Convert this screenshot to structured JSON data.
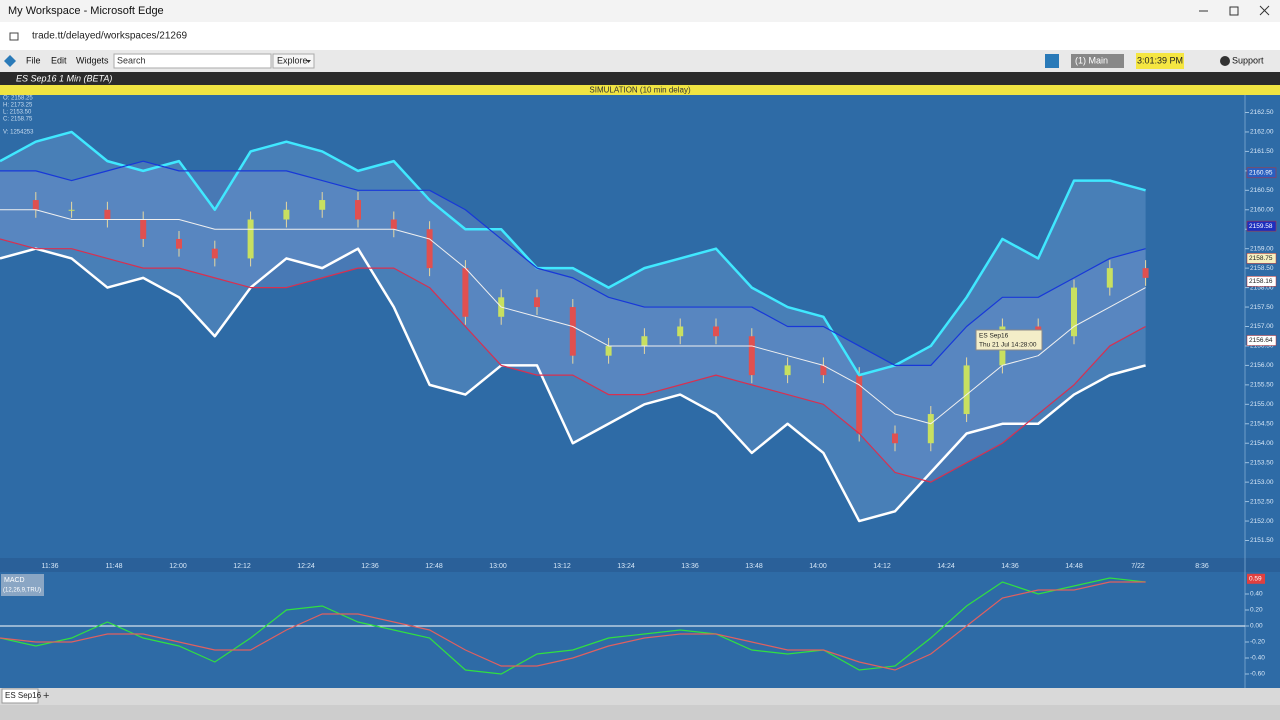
{
  "window": {
    "title": "My Workspace - Microsoft Edge",
    "url": "trade.tt/delayed/workspaces/21269"
  },
  "toolbar": {
    "menu": [
      "File",
      "Edit",
      "Widgets"
    ],
    "search": "Search",
    "explore": "Explore",
    "workspace": "(1) Main",
    "time": "3:01:39 PM",
    "support": "Support"
  },
  "widget": {
    "title": "ES Sep16 1 Min (BETA)",
    "banner": "SIMULATION (10 min delay)",
    "ohlc": [
      "O: 2158.25",
      "H: 2173.25",
      "L: 2153.50",
      "C: 2158.75",
      "V: 1254253"
    ],
    "tooltip": [
      "ES Sep16",
      "Thu 21 Jul 14:28:00"
    ]
  },
  "price_chart": {
    "type": "candlestick",
    "ylim": [
      2151.05,
      2162.95
    ],
    "yticks": [
      {
        "value": 2151.5,
        "label": "2151.50"
      },
      {
        "value": 2152,
        "label": "2152.00"
      },
      {
        "value": 2152.5,
        "label": "2152.50"
      },
      {
        "value": 2153,
        "label": "2153.00"
      },
      {
        "value": 2153.5,
        "label": "2153.50"
      },
      {
        "value": 2154,
        "label": "2154.00"
      },
      {
        "value": 2154.5,
        "label": "2154.50"
      },
      {
        "value": 2155,
        "label": "2155.00"
      },
      {
        "value": 2155.5,
        "label": "2155.50"
      },
      {
        "value": 2156,
        "label": "2156.00"
      },
      {
        "value": 2156.5,
        "label": "2156.50"
      },
      {
        "value": 2157,
        "label": "2157.00"
      },
      {
        "value": 2157.5,
        "label": "2157.50"
      },
      {
        "value": 2158,
        "label": "2158.00"
      },
      {
        "value": 2158.5,
        "label": "2158.50"
      },
      {
        "value": 2159,
        "label": "2159.00"
      },
      {
        "value": 2159.5,
        "label": "2159.50"
      },
      {
        "value": 2160,
        "label": "2160.00"
      },
      {
        "value": 2160.5,
        "label": "2160.50"
      },
      {
        "value": 2161,
        "label": "2161.00"
      },
      {
        "value": 2161.5,
        "label": "2161.50"
      },
      {
        "value": 2162,
        "label": "2162.00"
      },
      {
        "value": 2162.5,
        "label": "2162.50"
      }
    ],
    "xlabels": [
      "11:36",
      "11:48",
      "12:00",
      "12:12",
      "12:24",
      "12:36",
      "12:48",
      "13:00",
      "13:12",
      "13:24",
      "13:36",
      "13:48",
      "14:00",
      "14:12",
      "14:24",
      "14:36",
      "14:48",
      "7/22",
      "8:36"
    ],
    "close": [
      2160.25,
      2160.0,
      2160.0,
      2159.75,
      2159.25,
      2159.0,
      2158.75,
      2159.75,
      2160.0,
      2160.25,
      2159.75,
      2159.5,
      2158.5,
      2157.25,
      2157.75,
      2157.5,
      2156.25,
      2156.5,
      2156.75,
      2157.0,
      2156.75,
      2155.75,
      2156.0,
      2155.75,
      2154.25,
      2154.0,
      2154.75,
      2156.0,
      2157.0,
      2156.75,
      2158.0,
      2158.5,
      2158.25
    ],
    "up_color": "#c8e060",
    "down_color": "#e05050",
    "series": [
      {
        "key": "upper",
        "color": "#40e8ff",
        "width": 2.5,
        "values": [
          2161.25,
          2161.75,
          2162.0,
          2161.25,
          2161.0,
          2161.25,
          2160.0,
          2161.5,
          2161.75,
          2161.5,
          2161.0,
          2161.25,
          2160.25,
          2159.5,
          2159.5,
          2158.5,
          2158.5,
          2158.0,
          2158.5,
          2158.75,
          2159.0,
          2158.0,
          2157.5,
          2157.25,
          2155.75,
          2156.0,
          2156.5,
          2157.75,
          2159.25,
          2158.75,
          2160.75,
          2160.75,
          2160.5
        ]
      },
      {
        "key": "lower",
        "color": "#ffffff",
        "width": 2.5,
        "values": [
          2158.75,
          2159.0,
          2158.75,
          2158.0,
          2158.25,
          2157.75,
          2156.75,
          2158.0,
          2158.75,
          2158.5,
          2159.0,
          2157.5,
          2155.5,
          2155.25,
          2156.0,
          2156.0,
          2154.0,
          2154.5,
          2155.0,
          2155.25,
          2154.75,
          2153.75,
          2154.5,
          2153.75,
          2152.0,
          2152.25,
          2153.25,
          2154.25,
          2154.5,
          2154.5,
          2155.25,
          2155.75,
          2156.0
        ]
      },
      {
        "key": "bb_upper",
        "color": "#1838d8",
        "width": 1.2,
        "values": [
          2161.0,
          2161.0,
          2160.75,
          2161.0,
          2161.25,
          2161.0,
          2161.0,
          2161.0,
          2161.0,
          2160.75,
          2160.5,
          2160.5,
          2160.5,
          2160.0,
          2159.25,
          2158.5,
          2158.25,
          2157.75,
          2157.5,
          2157.5,
          2157.5,
          2157.5,
          2157.0,
          2157.0,
          2156.5,
          2156.0,
          2156.0,
          2157.0,
          2157.75,
          2157.75,
          2158.25,
          2158.75,
          2159.0
        ]
      },
      {
        "key": "bb_lower",
        "color": "#d83050",
        "width": 1.2,
        "values": [
          2159.25,
          2159.0,
          2159.0,
          2158.75,
          2158.5,
          2158.5,
          2158.25,
          2158.0,
          2158.0,
          2158.25,
          2158.5,
          2158.5,
          2158.0,
          2157.0,
          2156.0,
          2155.75,
          2155.75,
          2155.25,
          2155.25,
          2155.5,
          2155.75,
          2155.5,
          2155.25,
          2155.0,
          2154.25,
          2153.25,
          2153.0,
          2153.5,
          2154.0,
          2154.75,
          2155.5,
          2156.5,
          2157.0
        ]
      },
      {
        "key": "mid",
        "color": "#f0f0f0",
        "width": 1,
        "values": [
          2160.0,
          2160.0,
          2159.75,
          2159.75,
          2159.75,
          2159.75,
          2159.5,
          2159.5,
          2159.5,
          2159.5,
          2159.5,
          2159.5,
          2159.25,
          2158.5,
          2157.5,
          2157.25,
          2157.0,
          2156.5,
          2156.5,
          2156.5,
          2156.5,
          2156.5,
          2156.25,
          2156.0,
          2155.5,
          2154.75,
          2154.5,
          2155.25,
          2156.0,
          2156.25,
          2157.0,
          2157.5,
          2158.0
        ]
      }
    ],
    "markers": [
      {
        "value": 2160.95,
        "bg": "#2a5fc0",
        "fg": "#ffffff"
      },
      {
        "value": 2159.58,
        "bg": "#1c2fbf",
        "fg": "#ffffff"
      },
      {
        "value": 2158.75,
        "bg": "#f5f0c0",
        "fg": "#222222"
      },
      {
        "value": 2158.16,
        "bg": "#ffffff",
        "fg": "#222222"
      },
      {
        "value": 2156.64,
        "bg": "#ffffff",
        "fg": "#222222"
      }
    ]
  },
  "macd_chart": {
    "type": "line",
    "title": "MACD",
    "params": "(12,26,9,TRU)",
    "ylim": [
      -0.775,
      0.65
    ],
    "yticks": [
      {
        "value": 0.4,
        "label": "0.40"
      },
      {
        "value": 0.2,
        "label": "0.20"
      },
      {
        "value": 0,
        "label": "0.00"
      },
      {
        "value": -0.2,
        "label": "-0.20"
      },
      {
        "value": -0.4,
        "label": "-0.40"
      },
      {
        "value": -0.6,
        "label": "-0.60"
      }
    ],
    "marker": 0.59,
    "series": [
      {
        "key": "macd",
        "color": "#30e040",
        "values": [
          -0.15,
          -0.25,
          -0.15,
          0.05,
          -0.15,
          -0.25,
          -0.45,
          -0.15,
          0.2,
          0.25,
          0.05,
          -0.05,
          -0.15,
          -0.55,
          -0.6,
          -0.35,
          -0.3,
          -0.15,
          -0.1,
          -0.05,
          -0.1,
          -0.3,
          -0.35,
          -0.3,
          -0.55,
          -0.5,
          -0.15,
          0.25,
          0.55,
          0.4,
          0.5,
          0.6,
          0.55
        ]
      },
      {
        "key": "signal",
        "color": "#e06060",
        "values": [
          -0.15,
          -0.2,
          -0.2,
          -0.1,
          -0.1,
          -0.2,
          -0.3,
          -0.3,
          -0.05,
          0.15,
          0.15,
          0.05,
          -0.05,
          -0.3,
          -0.5,
          -0.5,
          -0.4,
          -0.25,
          -0.15,
          -0.1,
          -0.1,
          -0.2,
          -0.3,
          -0.3,
          -0.45,
          -0.55,
          -0.35,
          0.0,
          0.35,
          0.45,
          0.45,
          0.55,
          0.55
        ]
      }
    ]
  },
  "tabs": {
    "name": "ES Sep16",
    "add": "+"
  }
}
